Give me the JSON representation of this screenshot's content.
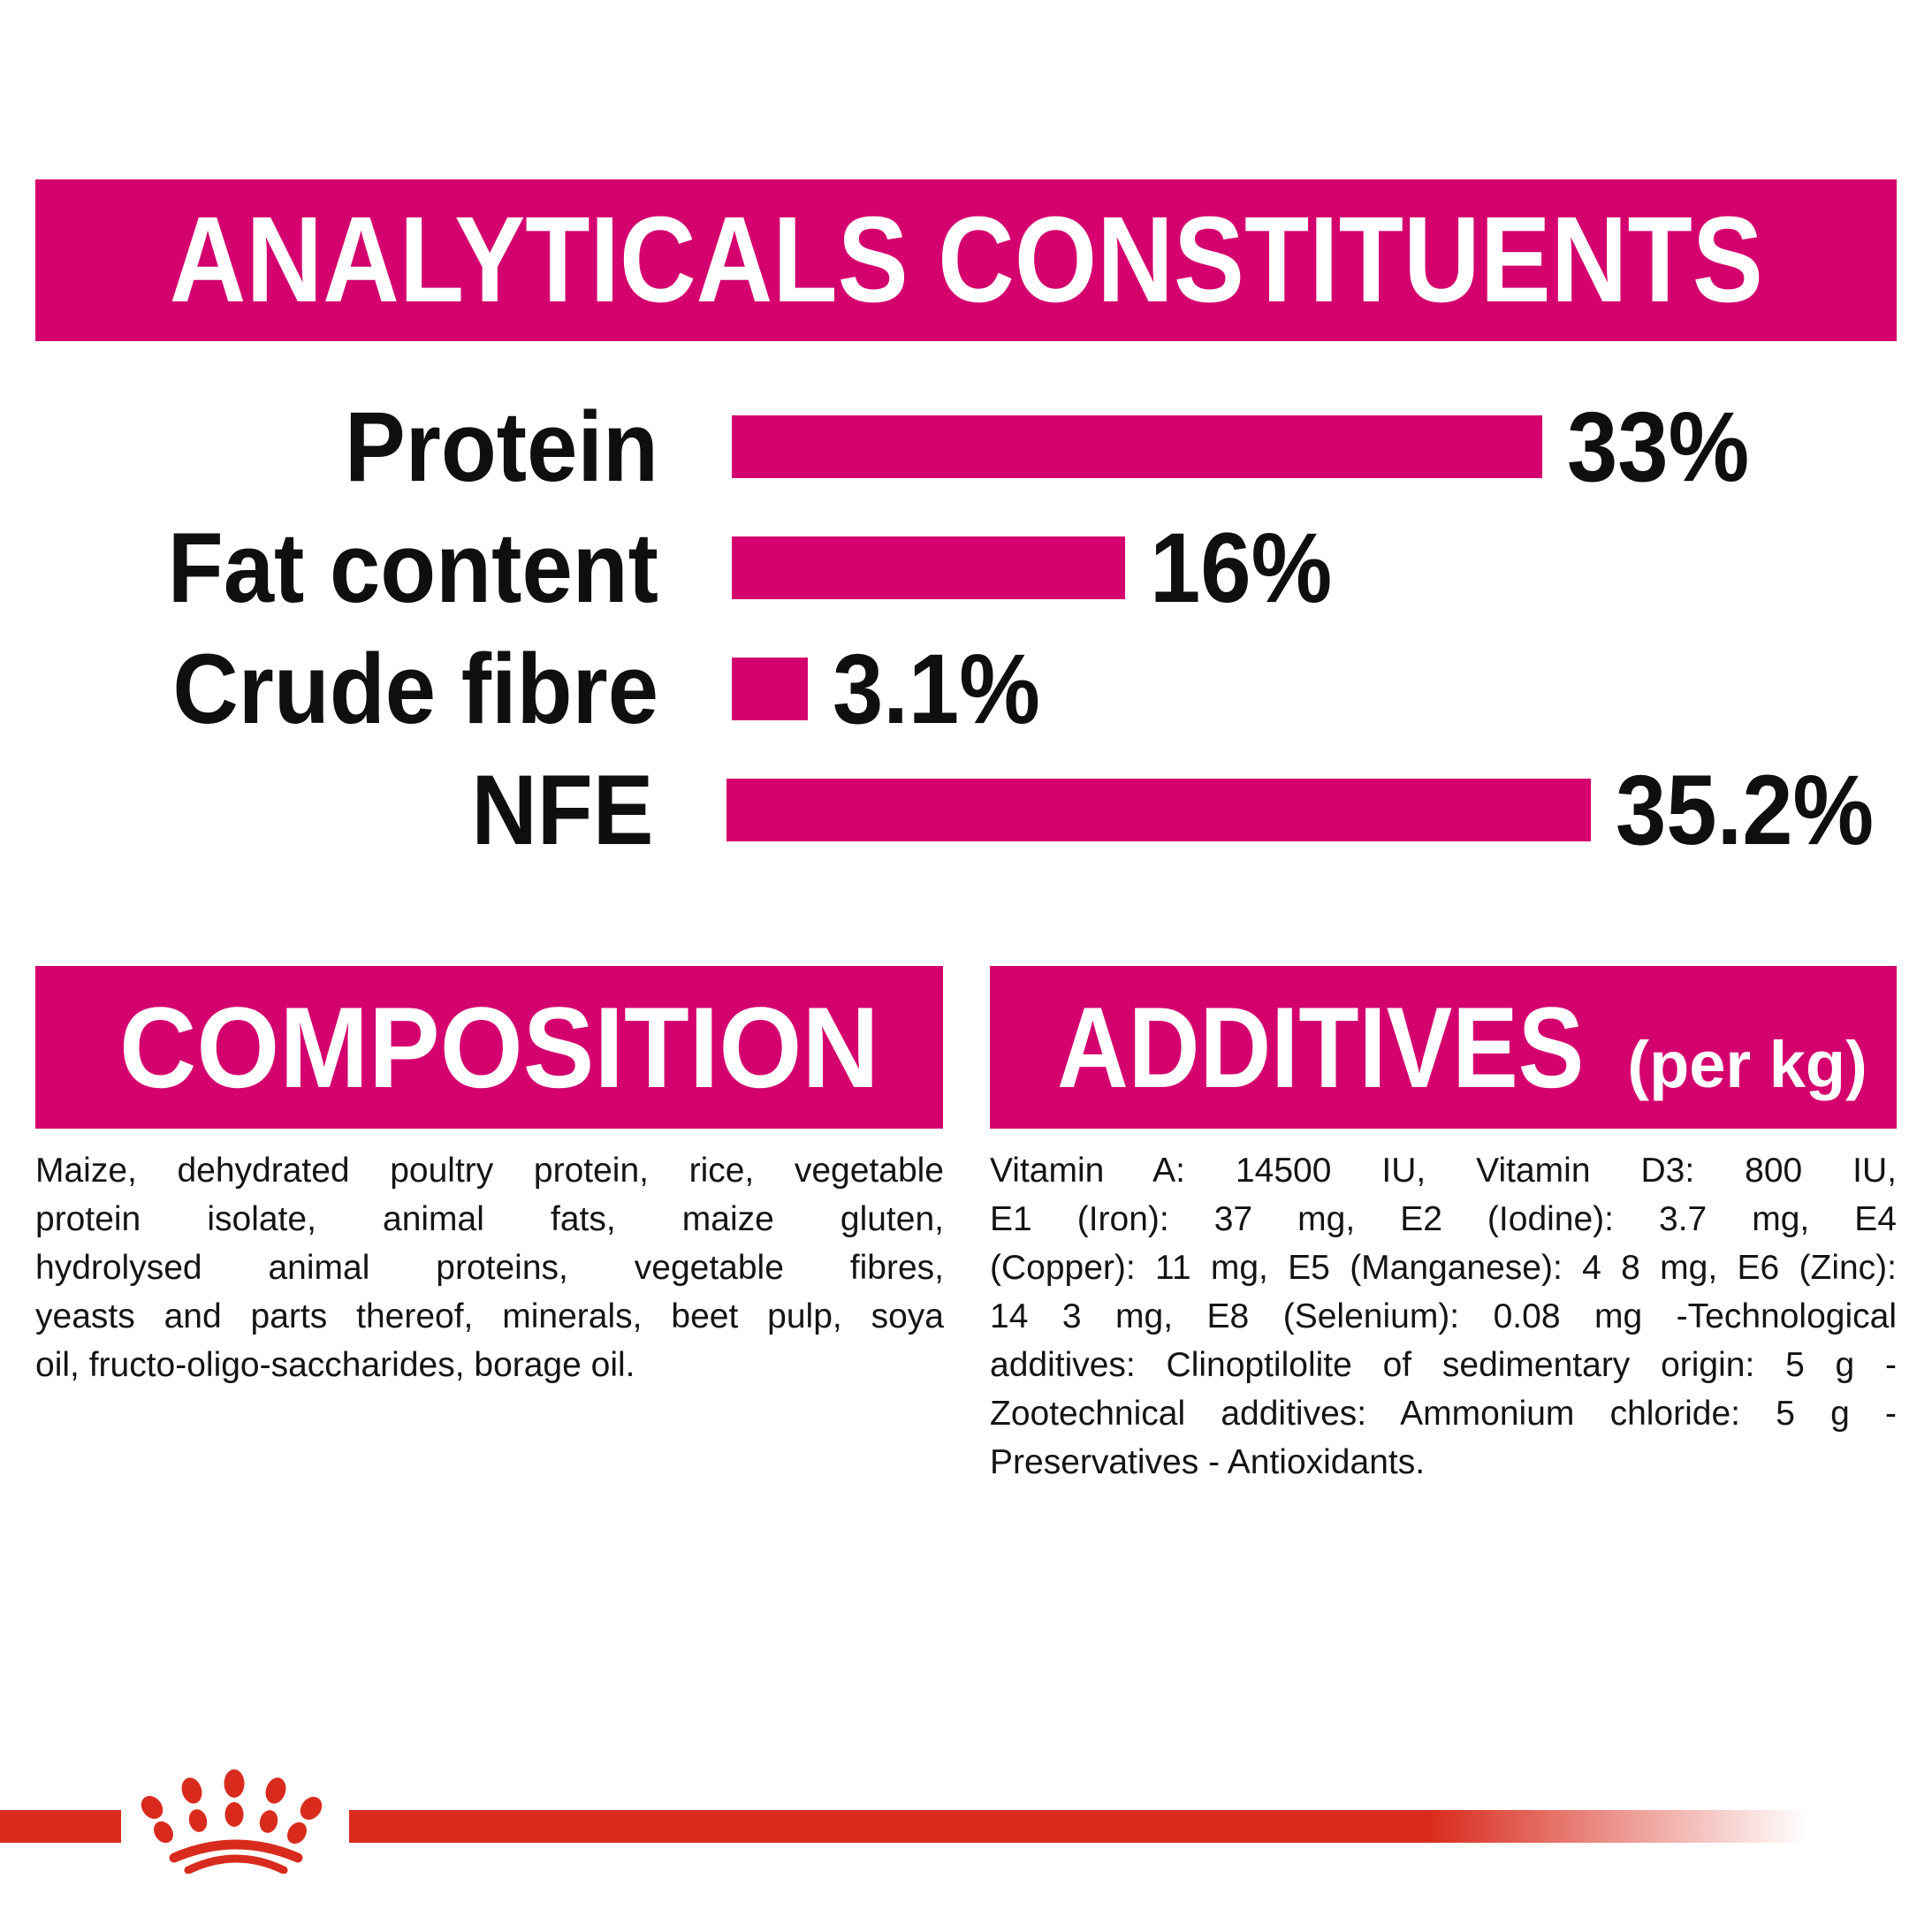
{
  "header": {
    "title": "ANALYTICALS CONSTITUENTS"
  },
  "chart_data": {
    "type": "bar",
    "orientation": "horizontal",
    "title": "ANALYTICALS CONSTITUENTS",
    "categories": [
      "Protein",
      "Fat content",
      "Crude fibre",
      "NFE"
    ],
    "values": [
      33,
      16,
      3.1,
      35.2
    ],
    "value_labels": [
      "33%",
      "16%",
      "3.1%",
      "35.2%"
    ],
    "unit": "%",
    "xlim": [
      0,
      36
    ],
    "grid": false,
    "bar_color": "#d4006e",
    "value_label_position": "right-of-bar"
  },
  "composition": {
    "title": "COMPOSITION",
    "lines": [
      "Maize, dehydrated poultry protein, rice, vegetable",
      "protein isolate,  animal fats, maize gluten,",
      "hydrolysed animal proteins, vegetable fibres,",
      "yeasts and parts thereof, minerals, beet pulp, soya",
      "oil, fructo-oligo-saccharides, borage oil."
    ]
  },
  "additives": {
    "title": "ADDITIVES",
    "title_suffix": "(per kg)",
    "lines": [
      "Vitamin A: 14500 IU, Vitamin D3: 800 IU,",
      "E1 (Iron): 37 mg, E2 (Iodine): 3.7 mg, E4",
      "(Copper): 11 mg, E5 (Manganese): 4 8 mg, E6 (Zinc):",
      "14 3 mg, E8 (Selenium): 0.08 mg -Technological",
      "additives: Clinoptilolite of sedimentary origin: 5 g -",
      "Zootechnical additives: Ammonium chloride: 5 g -",
      "Preservatives - Antioxidants."
    ]
  },
  "footer": {
    "logo_icon": "royal-canin-crown-paw-logo"
  },
  "colors": {
    "magenta": "#d4006e",
    "red": "#d92b1d",
    "text": "#0f0f0f",
    "header_text": "#ffffff",
    "background": "#ffffff"
  }
}
